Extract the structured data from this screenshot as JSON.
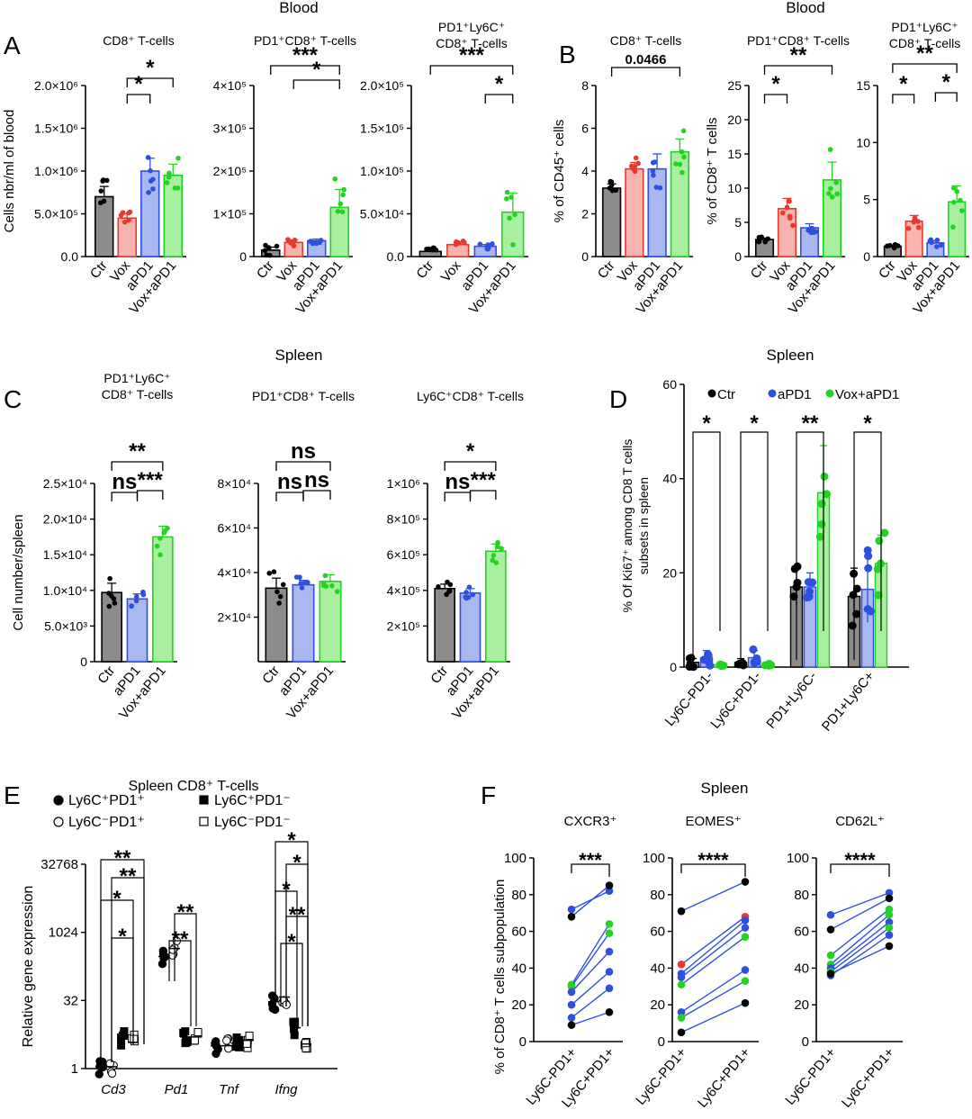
{
  "figure": {
    "section_titles": [
      {
        "id": "A-blood",
        "text": "Blood"
      },
      {
        "id": "B-blood",
        "text": "Blood"
      },
      {
        "id": "C-spleen",
        "text": "Spleen"
      },
      {
        "id": "D-spleen",
        "text": "Spleen"
      },
      {
        "id": "E-spleen",
        "text": "Spleen CD8⁺ T-cells"
      },
      {
        "id": "F-spleen",
        "text": "Spleen"
      }
    ],
    "panel_letters": [
      "A",
      "B",
      "C",
      "D",
      "E",
      "F"
    ],
    "colors": {
      "ctr": "#000000",
      "vox": "#e8392c",
      "apd1": "#2f4fe0",
      "voxapd1": "#22d422",
      "fill_ctr": "#8c8c8c",
      "fill_vox": "#f7b3ad",
      "fill_apd1": "#aab8f0",
      "fill_voxapd1": "#a8f0a0"
    },
    "legend_D": [
      "Ctr",
      "aPD1",
      "Vox+aPD1"
    ],
    "legend_E": [
      "Ly6C⁺PD1⁺",
      "Ly6C⁺PD1⁻",
      "Ly6C⁻PD1⁺",
      "Ly6C⁻PD1⁻"
    ]
  },
  "chart_data": [
    {
      "id": "A1",
      "type": "bar",
      "title": "CD8⁺ T-cells",
      "ylabel": "Cells nbr/ml of blood",
      "categories": [
        "Ctr",
        "Vox",
        "aPD1",
        "Vox+aPD1"
      ],
      "colors": [
        "ctr",
        "vox",
        "apd1",
        "voxapd1"
      ],
      "values": [
        700000,
        450000,
        1000000,
        950000
      ],
      "errors": [
        120000,
        50000,
        150000,
        130000
      ],
      "ylim": [
        0,
        2000000
      ],
      "yticks": [
        {
          "v": 0,
          "t": "0.0"
        },
        {
          "v": 500000,
          "t": "5.0×10⁵"
        },
        {
          "v": 1000000,
          "t": "1.0×10⁶"
        },
        {
          "v": 1500000,
          "t": "1.5×10⁶"
        },
        {
          "v": 2000000,
          "t": "2.0×10⁶"
        }
      ],
      "annotations": [
        {
          "from": 1,
          "to": 2,
          "label": "*"
        },
        {
          "from": 1,
          "to": 3,
          "label": "*"
        }
      ]
    },
    {
      "id": "A2",
      "type": "bar",
      "title": "PD1⁺CD8⁺ T-cells",
      "ylabel": "",
      "categories": [
        "Ctr",
        "Vox",
        "aPD1",
        "Vox+aPD1"
      ],
      "colors": [
        "ctr",
        "vox",
        "apd1",
        "voxapd1"
      ],
      "values": [
        15000,
        33000,
        37000,
        115000
      ],
      "errors": [
        7000,
        6000,
        4000,
        42000
      ],
      "ylim": [
        0,
        400000
      ],
      "yticks": [
        {
          "v": 0,
          "t": "0"
        },
        {
          "v": 100000,
          "t": "1×10⁵"
        },
        {
          "v": 200000,
          "t": "2×10⁵"
        },
        {
          "v": 300000,
          "t": "3×10⁵"
        },
        {
          "v": 400000,
          "t": "4×10⁵"
        }
      ],
      "annotations": [
        {
          "from": 1,
          "to": 3,
          "label": "*"
        },
        {
          "from": 0,
          "to": 3,
          "label": "***"
        }
      ]
    },
    {
      "id": "A3",
      "type": "bar",
      "title": "PD1⁺Ly6C⁺|CD8⁺ T-cells",
      "ylabel": "",
      "categories": [
        "Ctr",
        "Vox",
        "aPD1",
        "Vox+aPD1"
      ],
      "colors": [
        "ctr",
        "vox",
        "apd1",
        "voxapd1"
      ],
      "values": [
        6000,
        14000,
        12000,
        52000
      ],
      "errors": [
        2500,
        2500,
        2000,
        22000
      ],
      "ylim": [
        0,
        200000
      ],
      "yticks": [
        {
          "v": 0,
          "t": "0.0"
        },
        {
          "v": 50000,
          "t": "5.0×10⁴"
        },
        {
          "v": 100000,
          "t": "1.0×10⁵"
        },
        {
          "v": 150000,
          "t": "1.5×10⁵"
        },
        {
          "v": 200000,
          "t": "2.0×10⁵"
        }
      ],
      "annotations": [
        {
          "from": 2,
          "to": 3,
          "label": "*"
        },
        {
          "from": 0,
          "to": 3,
          "label": "***"
        }
      ]
    },
    {
      "id": "B1",
      "type": "bar",
      "title": "CD8⁺ T-cells",
      "ylabel": "% of CD45⁺ cells",
      "categories": [
        "Ctr",
        "Vox",
        "aPD1",
        "Vox+aPD1"
      ],
      "colors": [
        "ctr",
        "vox",
        "apd1",
        "voxapd1"
      ],
      "values": [
        3.2,
        4.1,
        4.1,
        4.9
      ],
      "errors": [
        0.2,
        0.3,
        0.7,
        0.6
      ],
      "ylim": [
        0,
        8
      ],
      "yticks": [
        {
          "v": 0,
          "t": "0"
        },
        {
          "v": 2,
          "t": "2"
        },
        {
          "v": 4,
          "t": "4"
        },
        {
          "v": 6,
          "t": "6"
        },
        {
          "v": 8,
          "t": "8"
        }
      ],
      "annotations": [
        {
          "from": 0,
          "to": 3,
          "label": "0.0466"
        }
      ]
    },
    {
      "id": "B2",
      "type": "bar",
      "title": "PD1⁺CD8⁺ T-cells",
      "ylabel": "% of CD8⁺ T cells",
      "categories": [
        "Ctr",
        "Vox",
        "aPD1",
        "Vox+aPD1"
      ],
      "colors": [
        "ctr",
        "vox",
        "apd1",
        "voxapd1"
      ],
      "values": [
        2.5,
        7,
        4.2,
        11.2
      ],
      "errors": [
        0.2,
        1.5,
        0.6,
        2.6
      ],
      "ylim": [
        0,
        25
      ],
      "yticks": [
        {
          "v": 0,
          "t": "0"
        },
        {
          "v": 5,
          "t": "5"
        },
        {
          "v": 10,
          "t": "10"
        },
        {
          "v": 15,
          "t": "15"
        },
        {
          "v": 20,
          "t": "20"
        },
        {
          "v": 25,
          "t": "25"
        }
      ],
      "annotations": [
        {
          "from": 0,
          "to": 1,
          "label": "*"
        },
        {
          "from": 0,
          "to": 3,
          "label": "**"
        }
      ]
    },
    {
      "id": "B3",
      "type": "bar",
      "title": "PD1⁺Ly6C⁺|CD8⁺ T-cells",
      "ylabel": "",
      "categories": [
        "Ctr",
        "Vox",
        "aPD1",
        "Vox+aPD1"
      ],
      "colors": [
        "ctr",
        "vox",
        "apd1",
        "voxapd1"
      ],
      "values": [
        0.9,
        3.1,
        1.2,
        4.8
      ],
      "errors": [
        0.1,
        0.5,
        0.2,
        1.4
      ],
      "ylim": [
        0,
        15
      ],
      "yticks": [
        {
          "v": 0,
          "t": "0"
        },
        {
          "v": 5,
          "t": "5"
        },
        {
          "v": 10,
          "t": "10"
        },
        {
          "v": 15,
          "t": "15"
        }
      ],
      "annotations": [
        {
          "from": 0,
          "to": 1,
          "label": "*"
        },
        {
          "from": 2,
          "to": 3,
          "label": "*"
        },
        {
          "from": 0,
          "to": 3,
          "label": "**"
        }
      ]
    },
    {
      "id": "C1",
      "type": "bar",
      "title": "PD1⁺Ly6C⁺|CD8⁺ T-cells",
      "ylabel": "Cell number/spleen",
      "categories": [
        "Ctr",
        "aPD1",
        "Vox+aPD1"
      ],
      "colors": [
        "ctr",
        "apd1",
        "voxapd1"
      ],
      "values": [
        9700,
        8800,
        17500
      ],
      "errors": [
        1300,
        700,
        1500
      ],
      "ylim": [
        0,
        25000
      ],
      "yticks": [
        {
          "v": 0,
          "t": "0"
        },
        {
          "v": 5000,
          "t": "5.0×10³"
        },
        {
          "v": 10000,
          "t": "1.0×10⁴"
        },
        {
          "v": 15000,
          "t": "1.5×10⁴"
        },
        {
          "v": 20000,
          "t": "2.0×10⁴"
        },
        {
          "v": 25000,
          "t": "2.5×10⁴"
        }
      ],
      "annotations": [
        {
          "from": 0,
          "to": 1,
          "label": "ns"
        },
        {
          "from": 1,
          "to": 2,
          "label": "***"
        },
        {
          "from": 0,
          "to": 2,
          "label": "**"
        }
      ]
    },
    {
      "id": "C2",
      "type": "bar",
      "title": "PD1⁺CD8⁺ T-cells",
      "ylabel": "",
      "categories": [
        "Ctr",
        "aPD1",
        "Vox+aPD1"
      ],
      "colors": [
        "ctr",
        "apd1",
        "voxapd1"
      ],
      "values": [
        33000,
        34500,
        36000
      ],
      "errors": [
        4500,
        2000,
        3000
      ],
      "ylim": [
        0,
        80000
      ],
      "yticks": [
        {
          "v": 20000,
          "t": "2×10⁴"
        },
        {
          "v": 40000,
          "t": "4×10⁴"
        },
        {
          "v": 60000,
          "t": "6×10⁴"
        },
        {
          "v": 80000,
          "t": "8×10⁴"
        }
      ],
      "annotations": [
        {
          "from": 0,
          "to": 1,
          "label": "ns"
        },
        {
          "from": 1,
          "to": 2,
          "label": "ns"
        },
        {
          "from": 0,
          "to": 2,
          "label": "ns"
        }
      ]
    },
    {
      "id": "C3",
      "type": "bar",
      "title": "Ly6C⁺CD8⁺ T-cells",
      "ylabel": "",
      "categories": [
        "Ctr",
        "aPD1",
        "Vox+aPD1"
      ],
      "colors": [
        "ctr",
        "apd1",
        "voxapd1"
      ],
      "values": [
        410000,
        385000,
        620000
      ],
      "errors": [
        25000,
        25000,
        40000
      ],
      "ylim": [
        0,
        1000000
      ],
      "yticks": [
        {
          "v": 200000,
          "t": "2×10⁵"
        },
        {
          "v": 400000,
          "t": "4×10⁵"
        },
        {
          "v": 600000,
          "t": "6×10⁵"
        },
        {
          "v": 800000,
          "t": "8×10⁵"
        },
        {
          "v": 1000000,
          "t": "1×10⁶"
        }
      ],
      "annotations": [
        {
          "from": 0,
          "to": 1,
          "label": "ns"
        },
        {
          "from": 1,
          "to": 2,
          "label": "***"
        },
        {
          "from": 0,
          "to": 2,
          "label": "*"
        }
      ]
    },
    {
      "id": "D",
      "type": "bar",
      "title": "",
      "ylabel": "% Of Ki67⁺ among CD8 T cells|subsets in spleen",
      "categories": [
        "Ly6C-PD1-",
        "Ly6C+PD1-",
        "PD1+Ly6C-",
        "PD1+Ly6C+"
      ],
      "series": [
        {
          "name": "Ctr",
          "color": "ctr",
          "values": [
            1,
            1,
            17,
            15
          ],
          "errors": [
            0.8,
            0.8,
            4,
            6
          ]
        },
        {
          "name": "aPD1",
          "color": "apd1",
          "values": [
            2,
            2,
            17,
            16.5
          ],
          "errors": [
            1.5,
            1.5,
            3,
            7
          ]
        },
        {
          "name": "Vox+aPD1",
          "color": "voxapd1",
          "values": [
            0.5,
            0.5,
            37,
            22
          ],
          "errors": [
            0.3,
            0.3,
            10,
            6
          ]
        }
      ],
      "ylim": [
        0,
        60
      ],
      "yticks": [
        {
          "v": 0,
          "t": "0"
        },
        {
          "v": 20,
          "t": "20"
        },
        {
          "v": 40,
          "t": "40"
        },
        {
          "v": 60,
          "t": "60"
        }
      ],
      "annotations": [
        "*",
        "*",
        "**",
        "*"
      ]
    },
    {
      "id": "E",
      "type": "scatter",
      "title": "Spleen CD8⁺ T-cells",
      "ylabel": "Relative gene expression",
      "yscale": "log2",
      "genes": [
        "Cd3",
        "Pd1",
        "Tnf",
        "Ifng"
      ],
      "groups": [
        "Ly6C⁺PD1⁺",
        "Ly6C⁻PD1⁺",
        "Ly6C⁺PD1⁻",
        "Ly6C⁻PD1⁻"
      ],
      "means": [
        [
          1.1,
          1.1,
          4.5,
          3.8
        ],
        [
          300,
          450,
          5,
          5
        ],
        [
          3.2,
          3.2,
          3.8,
          4.2
        ],
        [
          30,
          38,
          8,
          3.5
        ]
      ],
      "ylim": [
        1,
        32768
      ],
      "yticks": [
        {
          "v": 1,
          "t": "1"
        },
        {
          "v": 32,
          "t": "32"
        },
        {
          "v": 1024,
          "t": "1024"
        },
        {
          "v": 32768,
          "t": "32768"
        }
      ],
      "annotations": {
        "Cd3": [
          "*",
          "*",
          "**",
          "**"
        ],
        "Pd1": [
          "**",
          "**"
        ],
        "Ifng": [
          "*",
          "**",
          "*",
          "*",
          "*"
        ]
      }
    },
    {
      "id": "F1",
      "type": "line",
      "title": "CXCR3⁺",
      "ylabel": "% of CD8⁺ T cells subpopulation",
      "categories": [
        "Ly6C-PD1+",
        "Ly6C+PD1+"
      ],
      "pairs": [
        [
          72,
          82,
          "apd1"
        ],
        [
          68,
          85,
          "ctr"
        ],
        [
          31,
          64,
          "voxapd1"
        ],
        [
          30,
          59,
          "voxapd1"
        ],
        [
          27,
          49,
          "apd1"
        ],
        [
          20,
          38,
          "apd1"
        ],
        [
          13,
          29,
          "apd1"
        ],
        [
          9,
          16,
          "ctr"
        ]
      ],
      "ylim": [
        0,
        100
      ],
      "yticks": [
        {
          "v": 0,
          "t": "0"
        },
        {
          "v": 20,
          "t": "20"
        },
        {
          "v": 40,
          "t": "40"
        },
        {
          "v": 60,
          "t": "60"
        },
        {
          "v": 80,
          "t": "80"
        },
        {
          "v": 100,
          "t": "100"
        }
      ],
      "annotations": [
        {
          "label": "***"
        }
      ]
    },
    {
      "id": "F2",
      "type": "line",
      "title": "EOMES⁺",
      "ylabel": "",
      "categories": [
        "Ly6C-PD1+",
        "Ly6C+PD1+"
      ],
      "pairs": [
        [
          71,
          87,
          "ctr"
        ],
        [
          42,
          68,
          "vox"
        ],
        [
          37,
          66,
          "apd1"
        ],
        [
          35,
          62,
          "apd1"
        ],
        [
          31,
          57,
          "voxapd1"
        ],
        [
          16,
          39,
          "apd1"
        ],
        [
          13,
          33,
          "voxapd1"
        ],
        [
          5,
          21,
          "ctr"
        ]
      ],
      "ylim": [
        0,
        100
      ],
      "yticks": [
        {
          "v": 0,
          "t": "0"
        },
        {
          "v": 20,
          "t": "20"
        },
        {
          "v": 40,
          "t": "40"
        },
        {
          "v": 60,
          "t": "60"
        },
        {
          "v": 80,
          "t": "80"
        },
        {
          "v": 100,
          "t": "100"
        }
      ],
      "annotations": [
        {
          "label": "****"
        }
      ]
    },
    {
      "id": "F3",
      "type": "line",
      "title": "CD62L⁺",
      "ylabel": "",
      "categories": [
        "Ly6C-PD1+",
        "Ly6C+PD1+"
      ],
      "pairs": [
        [
          69,
          81,
          "apd1"
        ],
        [
          61,
          78,
          "ctr"
        ],
        [
          47,
          72,
          "voxapd1"
        ],
        [
          42,
          69,
          "voxapd1"
        ],
        [
          40,
          65,
          "apd1"
        ],
        [
          38,
          62,
          "voxapd1"
        ],
        [
          36,
          58,
          "apd1"
        ],
        [
          37,
          52,
          "ctr"
        ]
      ],
      "ylim": [
        0,
        100
      ],
      "yticks": [
        {
          "v": 0,
          "t": "0"
        },
        {
          "v": 20,
          "t": "20"
        },
        {
          "v": 40,
          "t": "40"
        },
        {
          "v": 60,
          "t": "60"
        },
        {
          "v": 80,
          "t": "80"
        },
        {
          "v": 100,
          "t": "100"
        }
      ],
      "annotations": [
        {
          "label": "****"
        }
      ]
    }
  ]
}
